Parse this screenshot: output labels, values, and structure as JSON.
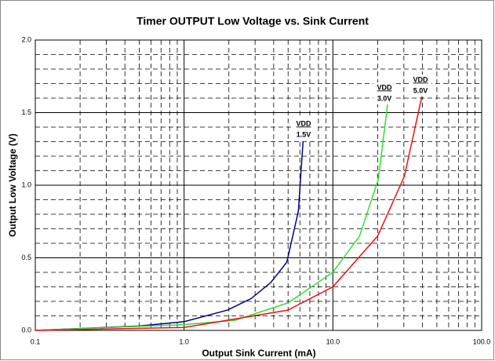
{
  "chart_data": {
    "type": "line",
    "title": "Timer OUTPUT Low Voltage vs. Sink Current",
    "x_label": "Output Sink Current (mA)",
    "y_label": "Output Low Voltage (V)",
    "x_log": true,
    "grid": true,
    "xlim": [
      0.1,
      100
    ],
    "ylim": [
      0,
      2.0
    ],
    "xticks": [
      0.1,
      {
        "value": 1,
        "label": "1.0"
      },
      {
        "value": 10,
        "label": "10.0"
      },
      {
        "value": 100,
        "label": "100.0"
      }
    ],
    "yticks": [
      {
        "value": 0,
        "label": "0.0"
      },
      {
        "value": 0.5,
        "label": "0.5"
      },
      {
        "value": 1,
        "label": "1.0"
      },
      {
        "value": 1.5,
        "label": "1.5"
      },
      {
        "value": 2,
        "label": "2.0"
      }
    ],
    "x_minor_ticks": [
      0.2,
      0.3,
      0.4,
      0.5,
      0.6,
      0.7,
      0.8,
      0.9,
      2,
      3,
      4,
      5,
      6,
      7,
      8,
      9,
      20,
      30,
      40,
      50,
      60,
      70,
      80,
      90
    ],
    "y_minor_ticks": [
      0.1,
      0.2,
      0.3,
      0.4,
      0.6,
      0.7,
      0.8,
      0.9,
      1.1,
      1.2,
      1.3,
      1.4,
      1.6,
      1.7,
      1.8,
      1.9
    ],
    "series": [
      {
        "name": "VDD 1.5V",
        "color": "#000080",
        "x": [
          0.1,
          0.5,
          1.0,
          1.96,
          2.83,
          3.83,
          4.9,
          5.86,
          6.3
        ],
        "values": [
          0.0,
          0.03,
          0.06,
          0.14,
          0.22,
          0.33,
          0.47,
          0.82,
          1.3
        ]
      },
      {
        "name": "VDD 3.0V",
        "color": "#33dd33",
        "x": [
          0.1,
          1.0,
          2.2,
          5.0,
          10,
          15.1,
          20.2,
          23.4
        ],
        "values": [
          0.0,
          0.04,
          0.07,
          0.19,
          0.4,
          0.65,
          1.04,
          1.57
        ]
      },
      {
        "name": "VDD 5.0V",
        "color": "#ee1111",
        "x": [
          0.1,
          1.0,
          5.0,
          10,
          20,
          30.2,
          40
        ],
        "values": [
          0.0,
          0.02,
          0.14,
          0.3,
          0.65,
          1.06,
          1.63
        ]
      }
    ],
    "annotations": [
      {
        "head": "VDD",
        "text": "1.5V"
      },
      {
        "head": "VDD",
        "text": "3.0V"
      },
      {
        "head": "VDD",
        "text": "5.0V"
      }
    ]
  }
}
